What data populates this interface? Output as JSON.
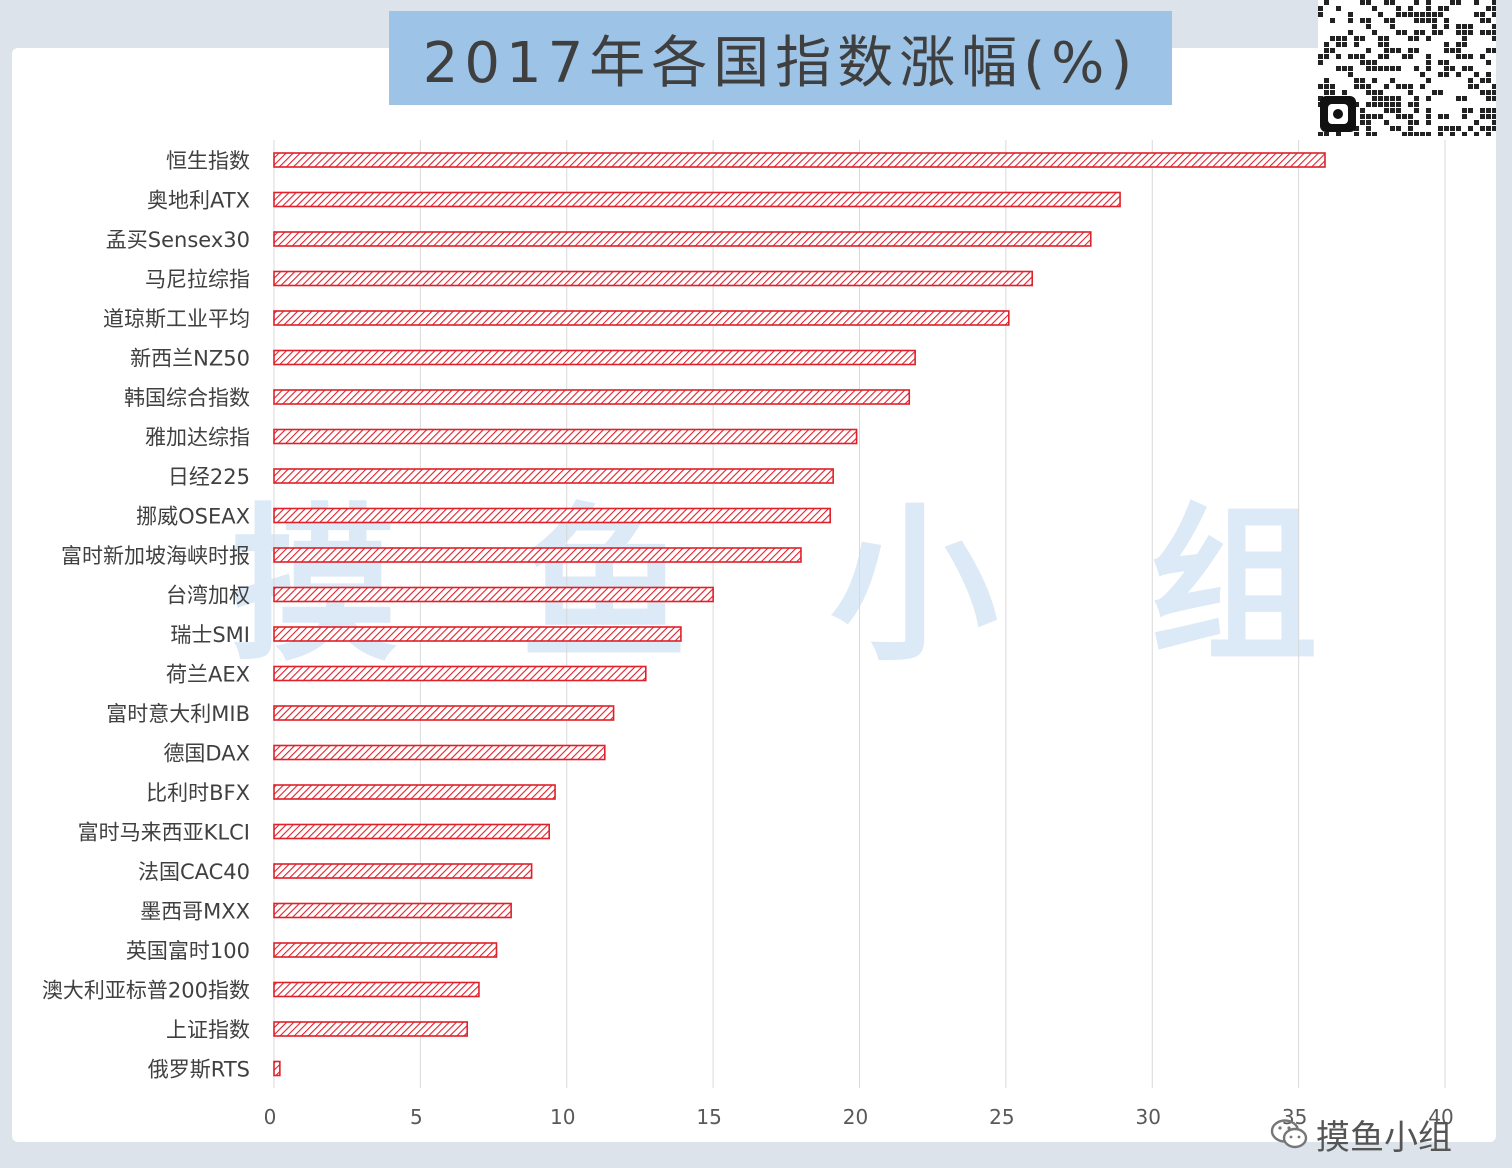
{
  "chart_data": {
    "type": "bar",
    "orientation": "horizontal",
    "title": "2017年各国指数涨幅(%)",
    "categories": [
      "恒生指数",
      "奥地利ATX",
      "孟买Sensex30",
      "马尼拉综指",
      "道琼斯工业平均",
      "新西兰NZ50",
      "韩国综合指数",
      "雅加达综指",
      "日经225",
      "挪威OSEAX",
      "富时新加坡海峡时报",
      "台湾加权",
      "瑞士SMI",
      "荷兰AEX",
      "富时意大利MIB",
      "德国DAX",
      "比利时BFX",
      "富时马来西亚KLCI",
      "法国CAC40",
      "墨西哥MXX",
      "英国富时100",
      "澳大利亚标普200指数",
      "上证指数",
      "俄罗斯RTS"
    ],
    "values": [
      35.9,
      28.9,
      27.9,
      25.9,
      25.1,
      21.9,
      21.7,
      19.9,
      19.1,
      19.0,
      18.0,
      15.0,
      13.9,
      12.7,
      11.6,
      11.3,
      9.6,
      9.4,
      8.8,
      8.1,
      7.6,
      7.0,
      6.6,
      0.2
    ],
    "xlim": [
      0,
      40
    ],
    "xticks": [
      "0",
      "5",
      "10",
      "15",
      "20",
      "25",
      "30",
      "35",
      "40"
    ],
    "grid": true,
    "bar_color": "#e0202a"
  },
  "watermark": [
    "摸",
    "鱼",
    "小",
    "组"
  ],
  "footer": {
    "account": "摸鱼小组",
    "icon": "wechat-icon"
  },
  "qr": {
    "icon": "qr-code-icon"
  }
}
